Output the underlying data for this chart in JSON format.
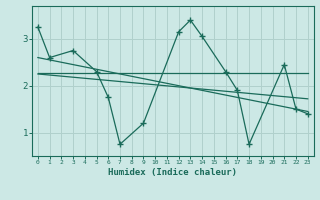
{
  "xlabel": "Humidex (Indice chaleur)",
  "background_color": "#cce8e5",
  "grid_color": "#b0d0cc",
  "line_color": "#1a6b5a",
  "xlim": [
    -0.5,
    23.5
  ],
  "ylim": [
    0.5,
    3.7
  ],
  "yticks": [
    1,
    2,
    3
  ],
  "xticks": [
    0,
    1,
    2,
    3,
    4,
    5,
    6,
    7,
    8,
    9,
    10,
    11,
    12,
    13,
    14,
    15,
    16,
    17,
    18,
    19,
    20,
    21,
    22,
    23
  ],
  "line1_x": [
    0,
    1,
    3,
    5,
    6,
    7,
    9,
    12,
    13,
    14,
    16,
    17,
    18,
    21,
    22,
    23
  ],
  "line1_y": [
    3.25,
    2.6,
    2.75,
    2.3,
    1.75,
    0.75,
    1.2,
    3.15,
    3.4,
    3.05,
    2.3,
    1.9,
    0.75,
    2.45,
    1.5,
    1.4
  ],
  "line2_x": [
    0,
    23
  ],
  "line2_y": [
    2.28,
    2.28
  ],
  "line3_x": [
    0,
    23
  ],
  "line3_y": [
    2.6,
    1.45
  ],
  "line4_x": [
    0,
    23
  ],
  "line4_y": [
    2.25,
    1.72
  ]
}
